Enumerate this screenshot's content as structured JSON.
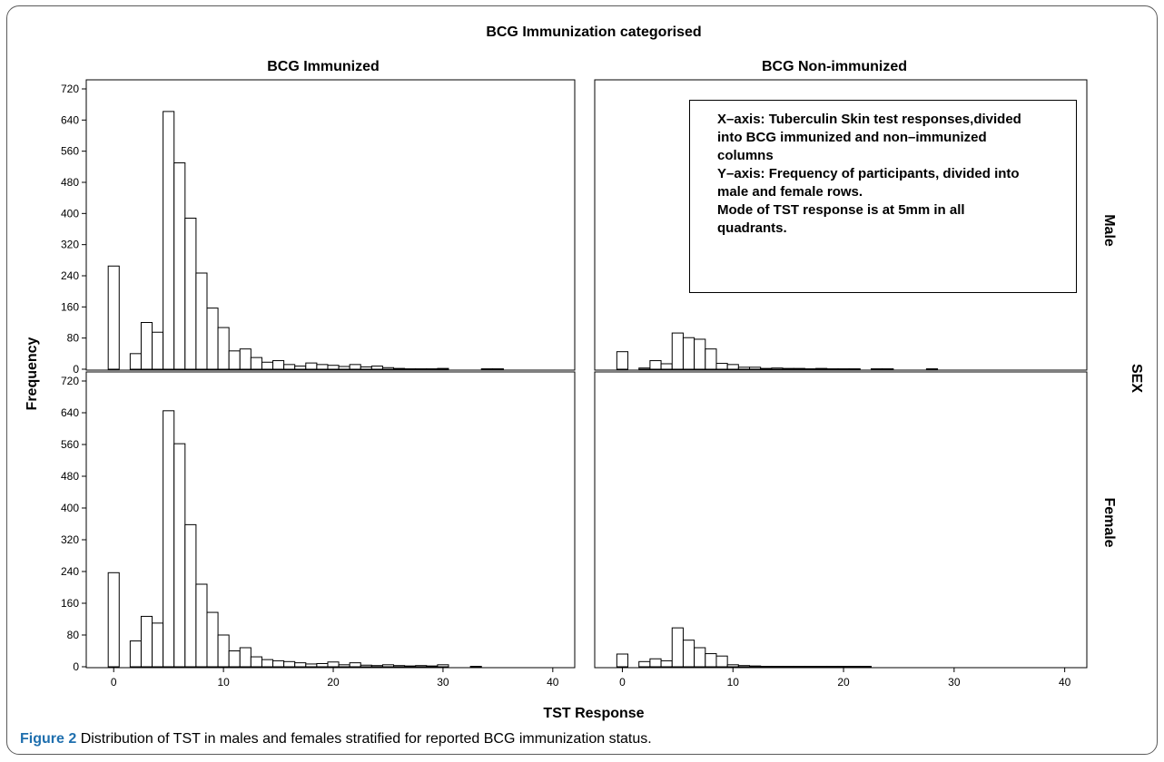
{
  "caption": {
    "label": "Figure 2",
    "text": "Distribution of TST in males and females stratified for reported BCG immunization status."
  },
  "annotation": {
    "lines": [
      "X–axis: Tuberculin Skin test responses,divided",
      "into BCG immunized and non–immunized",
      "columns",
      "Y–axis: Frequency of participants, divided into",
      "male and female rows.",
      "Mode of TST response is at 5mm in all",
      "quadrants."
    ]
  },
  "chart_data": {
    "type": "bar",
    "title": "BCG Immunization categorised",
    "xlabel": "TST Response",
    "ylabel": "Frequency",
    "row_label": "SEX",
    "columns": [
      "BCG Immunized",
      "BCG Non-immunized"
    ],
    "rows": [
      "Male",
      "Female"
    ],
    "xlim": [
      -2.5,
      42
    ],
    "ylim": [
      0,
      720
    ],
    "x_ticks": [
      0,
      10,
      20,
      30,
      40
    ],
    "y_ticks": [
      0,
      80,
      160,
      240,
      320,
      400,
      480,
      560,
      640,
      720
    ],
    "bin_width": 1,
    "grid": false,
    "panels": [
      {
        "column": "BCG Immunized",
        "row": "Male",
        "x": [
          0,
          1,
          2,
          3,
          4,
          5,
          6,
          7,
          8,
          9,
          10,
          11,
          12,
          13,
          14,
          15,
          16,
          17,
          18,
          19,
          20,
          21,
          22,
          23,
          24,
          25,
          26,
          27,
          28,
          29,
          30,
          31,
          32,
          33,
          34,
          35
        ],
        "values": [
          265,
          0,
          40,
          120,
          95,
          662,
          530,
          388,
          247,
          157,
          107,
          47,
          52,
          30,
          18,
          22,
          12,
          8,
          16,
          12,
          10,
          7,
          12,
          6,
          8,
          4,
          2,
          1,
          1,
          1,
          2,
          0,
          0,
          0,
          1,
          1
        ]
      },
      {
        "column": "BCG Non-immunized",
        "row": "Male",
        "x": [
          0,
          1,
          2,
          3,
          4,
          5,
          6,
          7,
          8,
          9,
          10,
          11,
          12,
          13,
          14,
          15,
          16,
          17,
          18,
          19,
          20,
          21,
          22,
          23,
          24,
          25,
          26,
          27,
          28
        ],
        "values": [
          45,
          0,
          3,
          22,
          14,
          93,
          81,
          77,
          52,
          15,
          12,
          5,
          5,
          2,
          3,
          2,
          2,
          1,
          2,
          1,
          1,
          1,
          0,
          1,
          1,
          0,
          0,
          0,
          1
        ]
      },
      {
        "column": "BCG Immunized",
        "row": "Female",
        "x": [
          0,
          1,
          2,
          3,
          4,
          5,
          6,
          7,
          8,
          9,
          10,
          11,
          12,
          13,
          14,
          15,
          16,
          17,
          18,
          19,
          20,
          21,
          22,
          23,
          24,
          25,
          26,
          27,
          28,
          29,
          30,
          31,
          32,
          33
        ],
        "values": [
          237,
          0,
          65,
          127,
          110,
          645,
          562,
          358,
          208,
          137,
          80,
          40,
          48,
          25,
          18,
          15,
          13,
          10,
          7,
          8,
          12,
          5,
          10,
          4,
          3,
          5,
          3,
          2,
          3,
          2,
          5,
          0,
          0,
          1
        ]
      },
      {
        "column": "BCG Non-immunized",
        "row": "Female",
        "x": [
          0,
          1,
          2,
          3,
          4,
          5,
          6,
          7,
          8,
          9,
          10,
          11,
          12,
          13,
          14,
          15,
          16,
          17,
          18,
          19,
          20,
          21,
          22,
          23,
          24,
          25,
          26,
          27,
          28,
          29,
          30,
          31,
          32,
          33
        ],
        "values": [
          32,
          0,
          13,
          20,
          15,
          98,
          67,
          48,
          33,
          27,
          5,
          3,
          2,
          1,
          1,
          1,
          1,
          1,
          1,
          1,
          1,
          1,
          1,
          0,
          0,
          0,
          0,
          0,
          0,
          0,
          0,
          0,
          0,
          0
        ]
      }
    ]
  }
}
